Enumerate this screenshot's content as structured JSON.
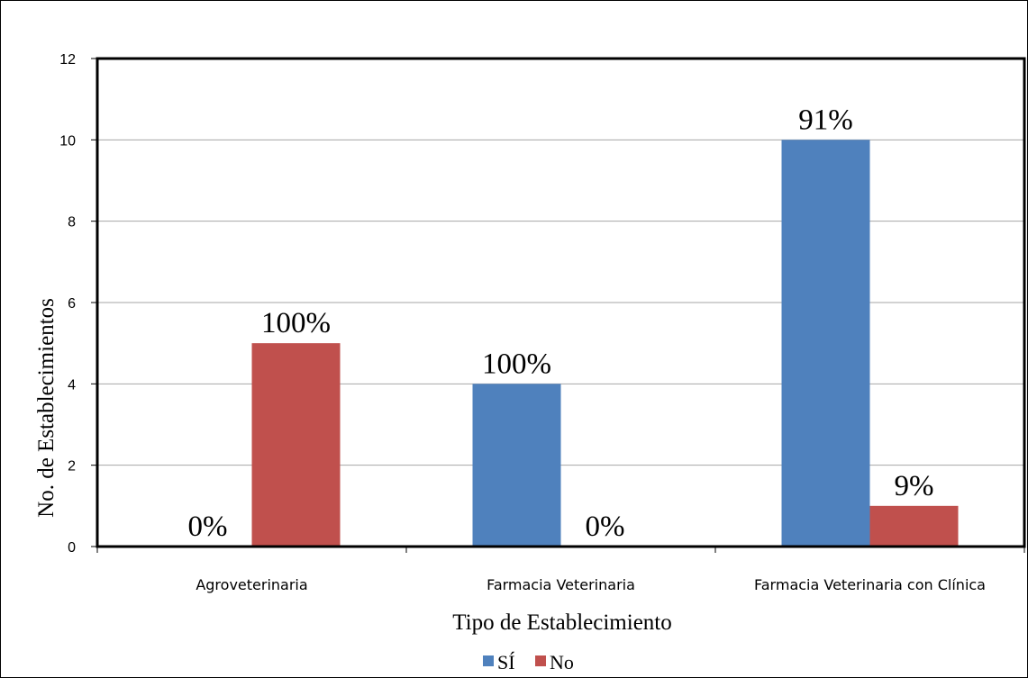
{
  "chart_data": {
    "type": "bar",
    "title": "",
    "xlabel": "Tipo de Establecimiento",
    "ylabel": "No. de Establecimientos",
    "categories": [
      "Agroveterinaria",
      "Farmacia Veterinaria",
      "Farmacia Veterinaria con Clínica"
    ],
    "series": [
      {
        "name": "SÍ",
        "values": [
          0,
          4,
          10
        ],
        "labels": [
          "0%",
          "100%",
          "91%"
        ],
        "color": "#4f81bd"
      },
      {
        "name": "No",
        "values": [
          5,
          0,
          1
        ],
        "labels": [
          "100%",
          "0%",
          "9%"
        ],
        "color": "#c0504d"
      }
    ],
    "ylim": [
      0,
      12
    ],
    "yticks": [
      0,
      2,
      4,
      6,
      8,
      10,
      12
    ],
    "grid": true,
    "legend": "bottom"
  }
}
